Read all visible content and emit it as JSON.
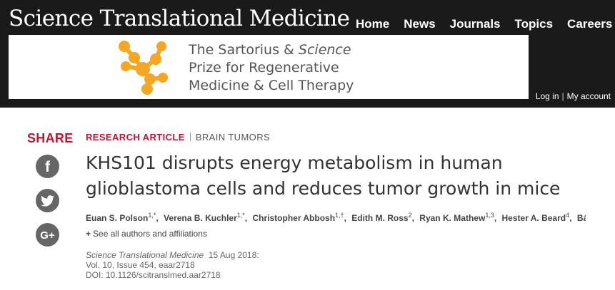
{
  "header": {
    "brand": "Science Translational Medicine",
    "nav": [
      "Home",
      "News",
      "Journals",
      "Topics",
      "Careers"
    ],
    "ad": {
      "line1_prefix": "The Sartorius & ",
      "line1_italic": "Science",
      "line2": "Prize for Regenerative",
      "line3": "Medicine & Cell Therapy",
      "logo_icon": "molecule-logo-icon",
      "logo_color": "#f5a623"
    },
    "account": {
      "login": "Log in",
      "my_account": "My account",
      "separator": "|"
    }
  },
  "share": {
    "label": "SHARE",
    "buttons": [
      {
        "name": "facebook",
        "icon": "facebook-icon",
        "glyph": "f"
      },
      {
        "name": "twitter",
        "icon": "twitter-icon"
      },
      {
        "name": "google-plus",
        "icon": "google-plus-icon",
        "glyph": "G+"
      }
    ]
  },
  "article": {
    "type": "RESEARCH ARTICLE",
    "subject": "BRAIN TUMORS",
    "title": "KHS101 disrupts energy metabolism in human glioblastoma cells and reduces tumor growth in mice",
    "authors": [
      {
        "name": "Euan S. Polson",
        "sup": "1,*"
      },
      {
        "name": "Verena B. Kuchler",
        "sup": "1,*"
      },
      {
        "name": "Christopher Abbosh",
        "sup": "1,†"
      },
      {
        "name": "Edith M. Ross",
        "sup": "2"
      },
      {
        "name": "Ryan K. Mathew",
        "sup": "1,3"
      },
      {
        "name": "Hester A. Beard",
        "sup": "4"
      },
      {
        "name": "Bárb…",
        "sup": ""
      }
    ],
    "see_all": "See all authors and affiliations",
    "citation": {
      "journal": "Science Translational Medicine",
      "date": "15 Aug 2018:",
      "volume": "Vol. 10, Issue 454, eaar2718",
      "doi": "DOI: 10.1126/scitranslmed.aar2718"
    }
  },
  "colors": {
    "header_bg": "#1a1a1a",
    "accent_red": "#c4122f",
    "share_gray": "#666666",
    "title_text": "#333333"
  }
}
